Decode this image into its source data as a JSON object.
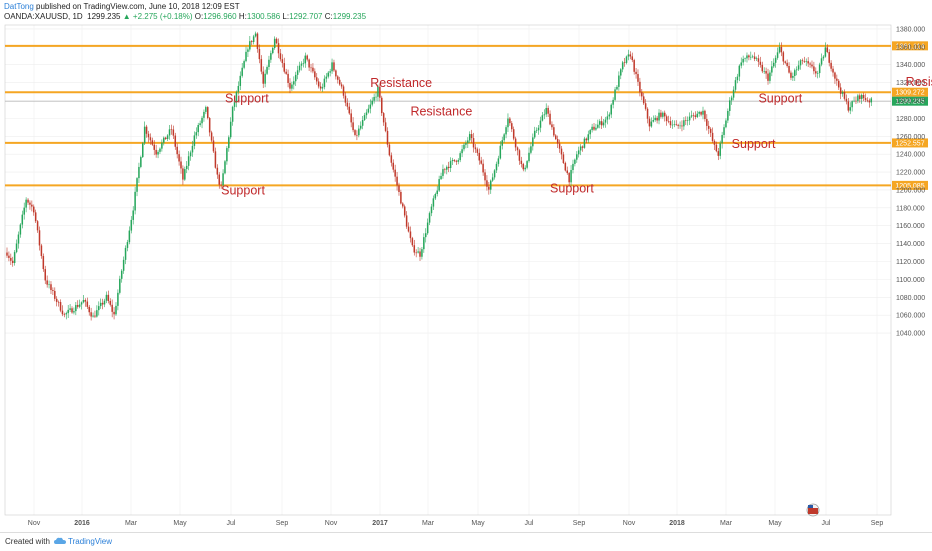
{
  "header": {
    "author": "DatTong",
    "published": "published on TradingView.com, June 10, 2018 12:09 EST",
    "symbol": "OANDA:XAUUSD, 1D",
    "last": "1299.235",
    "change": "+2.275 (+0.18%)",
    "open_label": "O:",
    "open": "1296.960",
    "high_label": "H:",
    "high": "1300.586",
    "low_label": "L:",
    "low": "1292.707",
    "close_label": "C:",
    "close": "1299.235"
  },
  "footer": {
    "created": "Created with",
    "brand": "TradingView"
  },
  "colors": {
    "up": "#26a65b",
    "down": "#c0392b",
    "level": "#f5a623",
    "annotation": "#c0282a",
    "axis_text": "#555555",
    "grid": "#eeeeee"
  },
  "chart_data": {
    "type": "candlestick",
    "ylim": [
      1030,
      1390
    ],
    "y_ticks": [
      1040,
      1060,
      1080,
      1100,
      1120,
      1140,
      1160,
      1180,
      1200,
      1220,
      1240,
      1260,
      1280,
      1300,
      1320,
      1340,
      1360,
      1380
    ],
    "x_ticks": [
      "Nov",
      "2016",
      "Mar",
      "May",
      "Jul",
      "Sep",
      "Nov",
      "2017",
      "Mar",
      "May",
      "Jul",
      "Sep",
      "Nov",
      "2018",
      "Mar",
      "May",
      "Jul",
      "Sep"
    ],
    "levels": [
      {
        "label": "1361.114",
        "value": 1361.114
      },
      {
        "label": "1309.272",
        "value": 1309.272
      },
      {
        "label": "1252.557",
        "value": 1252.557
      },
      {
        "label": "1205.085",
        "value": 1205.085
      }
    ],
    "last_price": {
      "label": "1299.235",
      "value": 1299.235
    },
    "annotations": [
      {
        "text": "Support",
        "bar": 114,
        "price": 1298
      },
      {
        "text": "Resistance",
        "bar": 190,
        "price": 1315
      },
      {
        "text": "Resistance",
        "bar": 211,
        "price": 1283
      },
      {
        "text": "Support",
        "bar": 112,
        "price": 1195
      },
      {
        "text": "Support",
        "bar": 284,
        "price": 1197
      },
      {
        "text": "Support",
        "bar": 379,
        "price": 1247
      },
      {
        "text": "Support",
        "bar": 393,
        "price": 1298
      },
      {
        "text": "Resistance",
        "bar": 470,
        "price": 1316
      }
    ],
    "path_points": [
      [
        0,
        1130
      ],
      [
        3,
        1118
      ],
      [
        10,
        1190
      ],
      [
        14,
        1178
      ],
      [
        20,
        1100
      ],
      [
        30,
        1060
      ],
      [
        40,
        1076
      ],
      [
        45,
        1058
      ],
      [
        52,
        1080
      ],
      [
        56,
        1060
      ],
      [
        60,
        1110
      ],
      [
        66,
        1180
      ],
      [
        72,
        1270
      ],
      [
        78,
        1242
      ],
      [
        86,
        1268
      ],
      [
        92,
        1212
      ],
      [
        98,
        1260
      ],
      [
        104,
        1290
      ],
      [
        110,
        1215
      ],
      [
        112,
        1202
      ],
      [
        118,
        1290
      ],
      [
        126,
        1360
      ],
      [
        130,
        1375
      ],
      [
        134,
        1318
      ],
      [
        140,
        1370
      ],
      [
        148,
        1315
      ],
      [
        156,
        1348
      ],
      [
        164,
        1312
      ],
      [
        170,
        1340
      ],
      [
        176,
        1308
      ],
      [
        182,
        1258
      ],
      [
        188,
        1285
      ],
      [
        194,
        1312
      ],
      [
        200,
        1240
      ],
      [
        206,
        1188
      ],
      [
        212,
        1135
      ],
      [
        216,
        1128
      ],
      [
        222,
        1180
      ],
      [
        228,
        1223
      ],
      [
        236,
        1236
      ],
      [
        242,
        1260
      ],
      [
        248,
        1228
      ],
      [
        252,
        1200
      ],
      [
        256,
        1230
      ],
      [
        262,
        1282
      ],
      [
        270,
        1220
      ],
      [
        276,
        1263
      ],
      [
        282,
        1290
      ],
      [
        288,
        1250
      ],
      [
        294,
        1212
      ],
      [
        298,
        1240
      ],
      [
        306,
        1268
      ],
      [
        314,
        1280
      ],
      [
        322,
        1340
      ],
      [
        326,
        1352
      ],
      [
        330,
        1318
      ],
      [
        336,
        1273
      ],
      [
        342,
        1285
      ],
      [
        350,
        1270
      ],
      [
        358,
        1282
      ],
      [
        364,
        1288
      ],
      [
        370,
        1248
      ],
      [
        372,
        1240
      ],
      [
        378,
        1298
      ],
      [
        384,
        1345
      ],
      [
        390,
        1350
      ],
      [
        398,
        1325
      ],
      [
        404,
        1358
      ],
      [
        410,
        1325
      ],
      [
        416,
        1345
      ],
      [
        424,
        1330
      ],
      [
        428,
        1358
      ],
      [
        434,
        1320
      ],
      [
        440,
        1292
      ],
      [
        446,
        1305
      ],
      [
        452,
        1299
      ]
    ],
    "candles": []
  }
}
